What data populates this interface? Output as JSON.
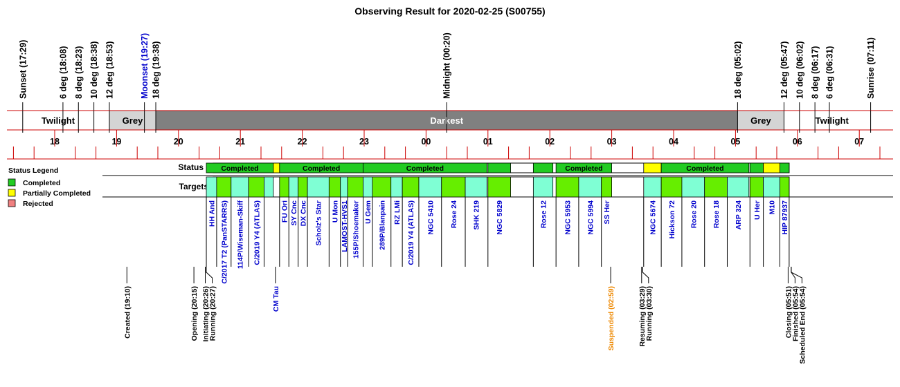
{
  "chart_data": {
    "type": "timeline",
    "title": "Observing Result for 2020-02-25 (S00755)",
    "time_axis": {
      "start": "17:00",
      "end": "31:20",
      "ticks": [
        "18",
        "19",
        "20",
        "21",
        "22",
        "23",
        "00",
        "01",
        "02",
        "03",
        "04",
        "05",
        "06",
        "07"
      ]
    },
    "twilight_events": [
      {
        "label": "Sunset (17:29)",
        "t": "17:29",
        "color": "#000000"
      },
      {
        "label": "6 deg (18:08)",
        "t": "18:08",
        "color": "#000000"
      },
      {
        "label": "8 deg (18:23)",
        "t": "18:23",
        "color": "#000000"
      },
      {
        "label": "10 deg (18:38)",
        "t": "18:38",
        "color": "#000000"
      },
      {
        "label": "12 deg (18:53)",
        "t": "18:53",
        "color": "#000000"
      },
      {
        "label": "Moonset (19:27)",
        "t": "19:27",
        "color": "#0000cc"
      },
      {
        "label": "18 deg (19:38)",
        "t": "19:38",
        "color": "#000000"
      },
      {
        "label": "Midnight (00:20)",
        "t": "24:20",
        "color": "#000000"
      },
      {
        "label": "18 deg (05:02)",
        "t": "29:02",
        "color": "#000000"
      },
      {
        "label": "12 deg (05:47)",
        "t": "29:47",
        "color": "#000000"
      },
      {
        "label": "10 deg (06:02)",
        "t": "30:02",
        "color": "#000000"
      },
      {
        "label": "8 deg (06:17)",
        "t": "30:17",
        "color": "#000000"
      },
      {
        "label": "6 deg (06:31)",
        "t": "30:31",
        "color": "#000000"
      },
      {
        "label": "Sunrise (07:11)",
        "t": "31:11",
        "color": "#000000"
      }
    ],
    "sky_periods": [
      {
        "label": "Twilight",
        "from": "17:00",
        "to": "18:53",
        "color": "#ffffff",
        "text_color": "#000000"
      },
      {
        "label": "Grey",
        "from": "18:53",
        "to": "19:38",
        "color": "#d4d4d4",
        "text_color": "#000000"
      },
      {
        "label": "Darkest",
        "from": "19:38",
        "to": "29:02",
        "color": "#808080",
        "text_color": "#ffffff"
      },
      {
        "label": "Grey",
        "from": "29:02",
        "to": "29:47",
        "color": "#d4d4d4",
        "text_color": "#000000"
      },
      {
        "label": "Twilight",
        "from": "29:47",
        "to": "31:20",
        "color": "#ffffff",
        "text_color": "#000000"
      }
    ],
    "row_labels": {
      "status": "Status",
      "targets": "Targets"
    },
    "legend": {
      "title": "Status Legend",
      "items": [
        {
          "label": "Completed",
          "color": "#22cc22"
        },
        {
          "label": "Partially Completed",
          "color": "#ffff00"
        },
        {
          "label": "Rejected",
          "color": "#f08080"
        }
      ]
    },
    "status_blocks": [
      {
        "label": "Completed",
        "from": "20:27",
        "to": "21:32",
        "status": "completed"
      },
      {
        "label": "",
        "from": "21:32",
        "to": "21:38",
        "status": "partial"
      },
      {
        "label": "Completed",
        "from": "21:38",
        "to": "22:59",
        "status": "completed"
      },
      {
        "label": "Completed",
        "from": "22:59",
        "to": "24:59",
        "status": "completed"
      },
      {
        "label": "",
        "from": "25:00",
        "to": "25:22",
        "status": "completed"
      },
      {
        "label": "",
        "from": "25:44",
        "to": "26:03",
        "status": "completed"
      },
      {
        "label": "Completed",
        "from": "26:06",
        "to": "27:00",
        "status": "completed"
      },
      {
        "label": "",
        "from": "27:31",
        "to": "27:48",
        "status": "partial"
      },
      {
        "label": "Completed",
        "from": "27:48",
        "to": "29:13",
        "status": "completed"
      },
      {
        "label": "",
        "from": "29:14",
        "to": "29:27",
        "status": "completed"
      },
      {
        "label": "",
        "from": "29:27",
        "to": "29:43",
        "status": "partial"
      },
      {
        "label": "",
        "from": "29:43",
        "to": "29:52",
        "status": "completed"
      }
    ],
    "targets": [
      {
        "name": "HH And",
        "from": "20:27",
        "to": "20:37",
        "color": "#7fffd4"
      },
      {
        "name": "C/2017 T2 (PanSTARRS)",
        "from": "20:37",
        "to": "20:51",
        "color": "#66ee00"
      },
      {
        "name": "114P/Wiseman-Skiff",
        "from": "20:51",
        "to": "21:08",
        "color": "#7fffd4"
      },
      {
        "name": "C/2019 Y4 (ATLAS)",
        "from": "21:08",
        "to": "21:23",
        "color": "#66ee00"
      },
      {
        "name": "",
        "from": "21:23",
        "to": "21:32",
        "color": "#7fffd4"
      },
      {
        "name": "FU Ori",
        "from": "21:38",
        "to": "21:47",
        "color": "#66ee00"
      },
      {
        "name": "SY Cnc",
        "from": "21:47",
        "to": "21:56",
        "color": "#7fffd4"
      },
      {
        "name": "DX Cnc",
        "from": "21:56",
        "to": "22:05",
        "color": "#66ee00"
      },
      {
        "name": "Scholz's Star",
        "from": "22:05",
        "to": "22:26",
        "color": "#7fffd4"
      },
      {
        "name": "U Mon",
        "from": "22:26",
        "to": "22:37",
        "color": "#66ee00"
      },
      {
        "name": "LAMOST-HVS1",
        "from": "22:37",
        "to": "22:44",
        "color": "#7fffd4"
      },
      {
        "name": "155P/Shoemaker",
        "from": "22:44",
        "to": "22:59",
        "color": "#66ee00"
      },
      {
        "name": "U Gem",
        "from": "22:59",
        "to": "23:08",
        "color": "#7fffd4"
      },
      {
        "name": "289P/Blanpain",
        "from": "23:08",
        "to": "23:26",
        "color": "#66ee00"
      },
      {
        "name": "RZ LMi",
        "from": "23:26",
        "to": "23:37",
        "color": "#7fffd4"
      },
      {
        "name": "C/2019 Y4 (ATLAS)",
        "from": "23:37",
        "to": "23:53",
        "color": "#66ee00"
      },
      {
        "name": "NGC 5410",
        "from": "23:53",
        "to": "24:15",
        "color": "#7fffd4"
      },
      {
        "name": "Rose 24",
        "from": "24:15",
        "to": "24:38",
        "color": "#66ee00"
      },
      {
        "name": "SHK 219",
        "from": "24:38",
        "to": "24:59",
        "color": "#7fffd4"
      },
      {
        "name": "NGC 5829",
        "from": "25:00",
        "to": "25:22",
        "color": "#66ee00"
      },
      {
        "name": "Rose 12",
        "from": "25:44",
        "to": "26:03",
        "color": "#7fffd4"
      },
      {
        "name": "NGC 5953",
        "from": "26:06",
        "to": "26:28",
        "color": "#66ee00"
      },
      {
        "name": "NGC 5994",
        "from": "26:28",
        "to": "26:50",
        "color": "#7fffd4"
      },
      {
        "name": "SS Her",
        "from": "26:50",
        "to": "27:00",
        "color": "#66ee00"
      },
      {
        "name": "NGC 5674",
        "from": "27:31",
        "to": "27:48",
        "color": "#7fffd4"
      },
      {
        "name": "Hickson 72",
        "from": "27:48",
        "to": "28:08",
        "color": "#66ee00"
      },
      {
        "name": "Rose 20",
        "from": "28:08",
        "to": "28:30",
        "color": "#7fffd4"
      },
      {
        "name": "Rose 18",
        "from": "28:30",
        "to": "28:52",
        "color": "#66ee00"
      },
      {
        "name": "ARP 324",
        "from": "28:52",
        "to": "29:13",
        "color": "#7fffd4"
      },
      {
        "name": "U Her",
        "from": "29:14",
        "to": "29:27",
        "color": "#66ee00"
      },
      {
        "name": "M10",
        "from": "29:27",
        "to": "29:43",
        "color": "#7fffd4"
      },
      {
        "name": "HIP 87937",
        "from": "29:43",
        "to": "29:52",
        "color": "#66ee00"
      }
    ],
    "events": [
      {
        "label": "Created (19:10)",
        "t": "19:10",
        "color": "#000000"
      },
      {
        "label": "Opening (20:15)",
        "t": "20:15",
        "color": "#000000"
      },
      {
        "label": "Initiating (20:26)",
        "t": "20:26",
        "color": "#000000"
      },
      {
        "label": "Running (20:27)",
        "t": "20:27",
        "color": "#000000"
      },
      {
        "label": "CM Tau",
        "t": "21:34",
        "color": "#0000cc"
      },
      {
        "label": "Suspended (02:59)",
        "t": "26:59",
        "color": "#ee8800"
      },
      {
        "label": "Resuming (03:29)",
        "t": "27:29",
        "color": "#000000"
      },
      {
        "label": "Running (03:30)",
        "t": "27:30",
        "color": "#000000"
      },
      {
        "label": "Closing (05:51)",
        "t": "29:51",
        "color": "#000000"
      },
      {
        "label": "Finished (05:54)",
        "t": "29:54",
        "color": "#000000"
      },
      {
        "label": "Scheduled End (05:54)",
        "t": "29:54",
        "color": "#000000"
      }
    ]
  }
}
